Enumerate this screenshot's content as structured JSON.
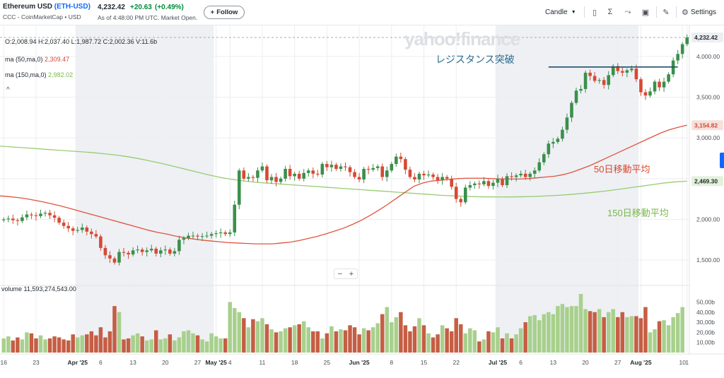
{
  "header": {
    "name": "Ethereum USD",
    "ticker": "(ETH-USD)",
    "subtitle": "CCC - CoinMarketCap • USD",
    "price": "4,232.42",
    "change": "+20.63",
    "change_pct": "(+0.49%)",
    "as_of": "As of 4:48:00 PM UTC. Market Open.",
    "follow_label": "Follow",
    "follow_icon": "plus-icon"
  },
  "toolbar": {
    "chart_type": "Candle",
    "settings_label": "Settings",
    "icons": [
      "chart-type-icon",
      "sigma-indicators-icon",
      "compare-icon",
      "events-icon",
      "draw-pencil-icon",
      "gear-icon"
    ]
  },
  "legend": {
    "ohlc": "O:2,008.94  H:2,037.40  L:1,987.72  C:2,002.36  V:11.6b",
    "ma50_label": "ma (50,ma,0)",
    "ma50_value": "2,309.47",
    "ma150_label": "ma (150,ma,0)",
    "ma150_value": "2,982.02",
    "volume_label": "volume",
    "volume_value": "11,593,274,543.00"
  },
  "watermark": "yahoo!finance",
  "annotations": {
    "resistance": "レジスタンス突破",
    "ma50": "50日移動平均",
    "ma150": "150日移動平均"
  },
  "zoom": {
    "minus": "−",
    "plus": "+"
  },
  "colors": {
    "up": "#3b8f4c",
    "down": "#d64933",
    "vol_up": "#a8d08d",
    "vol_down": "#c55e44",
    "ma50": "#e0533e",
    "ma150": "#98cc72",
    "resistance": "#1f4e6b",
    "shade": "#eef0f4"
  },
  "chart_data": {
    "type": "candlestick",
    "yaxis": {
      "ticks": [
        1500,
        2000,
        2500,
        3000,
        3500,
        4000
      ],
      "tick_labels": [
        "1,500.00",
        "2,000.00",
        "2,500.00",
        "3,000.00",
        "3,500.00",
        "4,000.00"
      ],
      "ylim": [
        1250,
        4380
      ]
    },
    "xaxis": {
      "tick_labels": [
        {
          "d": 0,
          "label": "16",
          "bold": false
        },
        {
          "d": 7,
          "label": "23",
          "bold": false
        },
        {
          "d": 16,
          "label": "Apr '25",
          "bold": true
        },
        {
          "d": 21,
          "label": "6",
          "bold": false
        },
        {
          "d": 28,
          "label": "13",
          "bold": false
        },
        {
          "d": 35,
          "label": "20",
          "bold": false
        },
        {
          "d": 42,
          "label": "27",
          "bold": false
        },
        {
          "d": 46,
          "label": "May '25",
          "bold": true
        },
        {
          "d": 49,
          "label": "4",
          "bold": false
        },
        {
          "d": 56,
          "label": "11",
          "bold": false
        },
        {
          "d": 63,
          "label": "18",
          "bold": false
        },
        {
          "d": 70,
          "label": "25",
          "bold": false
        },
        {
          "d": 77,
          "label": "Jun '25",
          "bold": true
        },
        {
          "d": 84,
          "label": "8",
          "bold": false
        },
        {
          "d": 91,
          "label": "15",
          "bold": false
        },
        {
          "d": 98,
          "label": "22",
          "bold": false
        },
        {
          "d": 107,
          "label": "Jul '25",
          "bold": true
        },
        {
          "d": 112,
          "label": "6",
          "bold": false
        },
        {
          "d": 119,
          "label": "13",
          "bold": false
        },
        {
          "d": 126,
          "label": "20",
          "bold": false
        },
        {
          "d": 133,
          "label": "27",
          "bold": false
        },
        {
          "d": 138,
          "label": "Aug '25",
          "bold": true
        },
        {
          "d": 147,
          "label": "10",
          "bold": false
        },
        {
          "d": 148,
          "label": "1",
          "bold": false
        }
      ]
    },
    "volume_axis": {
      "ticks": [
        10,
        20,
        30,
        40,
        50
      ],
      "tick_labels": [
        "10,00b",
        "20,00b",
        "30,00b",
        "40,00b",
        "50,00b"
      ],
      "max": 58
    },
    "price_tags": [
      {
        "value": 4232.42,
        "label": "4,232.42",
        "bg": "#eceef1",
        "fg": "#232a31"
      },
      {
        "value": 3154.82,
        "label": "3,154.82",
        "bg": "#f5e1dc",
        "fg": "#d64933"
      },
      {
        "value": 2469.3,
        "label": "2,469.30",
        "bg": "#e4f1dc",
        "fg": "#232a31"
      }
    ],
    "resistance_level": 3870,
    "current_price": 4232.42,
    "shaded_ranges": [
      [
        16,
        46
      ],
      [
        107,
        138
      ]
    ],
    "series_close": [
      2000,
      2010,
      1990,
      1980,
      2025,
      2060,
      2050,
      2040,
      2070,
      2080,
      2050,
      2020,
      1960,
      1920,
      1890,
      1860,
      1870,
      1900,
      1850,
      1820,
      1790,
      1650,
      1560,
      1520,
      1470,
      1600,
      1590,
      1570,
      1620,
      1630,
      1600,
      1620,
      1640,
      1580,
      1620,
      1630,
      1580,
      1610,
      1750,
      1770,
      1800,
      1800,
      1790,
      1795,
      1800,
      1820,
      1830,
      1840,
      1820,
      1840,
      2180,
      2600,
      2500,
      2520,
      2510,
      2600,
      2650,
      2480,
      2520,
      2460,
      2500,
      2620,
      2530,
      2560,
      2500,
      2570,
      2600,
      2560,
      2550,
      2680,
      2640,
      2670,
      2620,
      2650,
      2640,
      2580,
      2520,
      2490,
      2620,
      2610,
      2630,
      2650,
      2520,
      2600,
      2680,
      2770,
      2740,
      2610,
      2520,
      2490,
      2560,
      2540,
      2550,
      2520,
      2480,
      2520,
      2500,
      2400,
      2250,
      2210,
      2390,
      2420,
      2440,
      2430,
      2470,
      2410,
      2450,
      2500,
      2420,
      2530,
      2520,
      2540,
      2560,
      2520,
      2560,
      2600,
      2700,
      2800,
      2930,
      2950,
      2990,
      3100,
      3250,
      3430,
      3580,
      3600,
      3800,
      3760,
      3700,
      3710,
      3650,
      3770,
      3880,
      3820,
      3800,
      3830,
      3850,
      3720,
      3560,
      3520,
      3570,
      3690,
      3620,
      3690,
      3780,
      3950,
      4030,
      4150,
      4232
    ],
    "series_ma50": [
      2290,
      2280,
      2270,
      2255,
      2235,
      2215,
      2190,
      2165,
      2135,
      2105,
      2075,
      2045,
      2015,
      1985,
      1955,
      1925,
      1895,
      1865,
      1840,
      1820,
      1795,
      1775,
      1760,
      1745,
      1735,
      1725,
      1715,
      1710,
      1705,
      1700,
      1700,
      1700,
      1710,
      1720,
      1740,
      1765,
      1790,
      1820,
      1855,
      1890,
      1935,
      1985,
      2045,
      2110,
      2180,
      2255,
      2330,
      2405,
      2445,
      2470,
      2480,
      2490,
      2500,
      2505,
      2505,
      2505,
      2500,
      2495,
      2495,
      2495,
      2500,
      2510,
      2520,
      2530,
      2550,
      2580,
      2620,
      2660,
      2710,
      2760,
      2810,
      2860,
      2910,
      2960,
      3010,
      3060,
      3100,
      3130,
      3155
    ],
    "series_ma150": [
      2900,
      2890,
      2880,
      2870,
      2860,
      2850,
      2840,
      2830,
      2820,
      2805,
      2790,
      2770,
      2745,
      2715,
      2685,
      2650,
      2615,
      2580,
      2545,
      2515,
      2490,
      2470,
      2455,
      2445,
      2435,
      2425,
      2415,
      2405,
      2395,
      2385,
      2375,
      2365,
      2355,
      2345,
      2335,
      2325,
      2315,
      2305,
      2295,
      2288,
      2283,
      2278,
      2276,
      2275,
      2276,
      2278,
      2282,
      2288,
      2296,
      2306,
      2318,
      2332,
      2348,
      2366,
      2386,
      2406,
      2426,
      2446,
      2460,
      2469
    ],
    "series_volume": [
      14,
      16,
      12,
      15,
      13,
      20,
      19,
      14,
      17,
      13,
      14,
      16,
      15,
      13,
      12,
      18,
      15,
      17,
      18,
      21,
      17,
      25,
      15,
      21,
      46,
      40,
      13,
      14,
      17,
      19,
      16,
      12,
      13,
      22,
      13,
      14,
      18,
      12,
      15,
      21,
      22,
      19,
      17,
      13,
      11,
      19,
      16,
      14,
      14,
      50,
      44,
      40,
      34,
      25,
      33,
      31,
      34,
      28,
      23,
      20,
      21,
      24,
      25,
      27,
      28,
      31,
      25,
      21,
      21,
      14,
      19,
      26,
      21,
      23,
      22,
      27,
      25,
      18,
      24,
      22,
      25,
      29,
      38,
      45,
      30,
      35,
      40,
      27,
      21,
      26,
      34,
      27,
      19,
      15,
      18,
      27,
      24,
      21,
      34,
      28,
      19,
      24,
      22,
      11,
      13,
      21,
      20,
      25,
      14,
      19,
      14,
      18,
      24,
      30,
      36,
      37,
      32,
      38,
      40,
      38,
      46,
      48,
      45,
      46,
      46,
      58,
      43,
      41,
      40,
      43,
      35,
      40,
      43,
      35,
      40,
      35,
      36,
      36,
      34,
      45,
      20,
      23,
      31,
      32,
      27,
      35,
      39,
      45,
      0
    ]
  }
}
